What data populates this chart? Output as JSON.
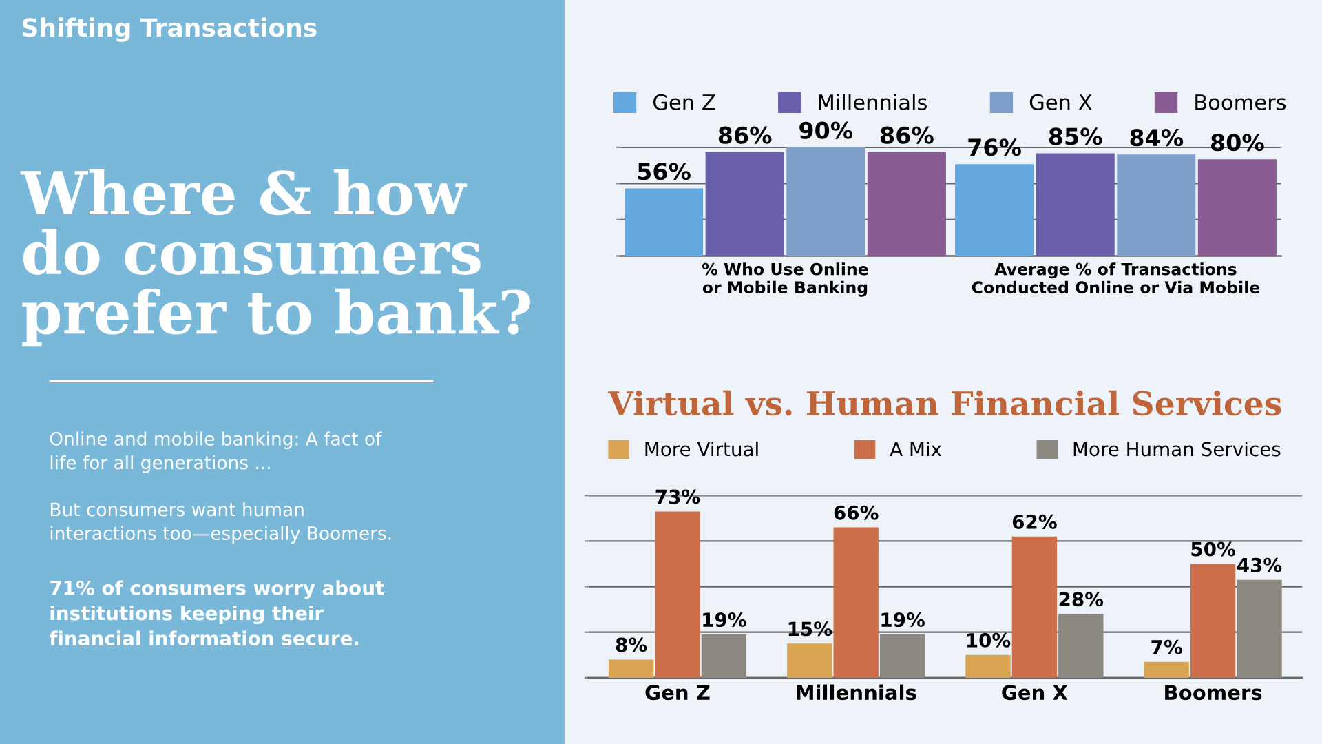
{
  "chart_data": [
    {
      "type": "other",
      "title": "Shifting Transactions",
      "subtitle": "Where & how\ndo consumers\nprefer to bank?",
      "annotations": [
        "Online and mobile banking: A fact of\nlife for all generations ...",
        "But consumers want human\ninteractions too—especially Boomers.",
        "71% of consumers worry about\ninstitutions keeping their\nfinancial information secure."
      ]
    },
    {
      "type": "bar",
      "categories": [
        "% Who Use Online\nor Mobile Banking",
        "Average % of Transactions\nConducted Online or Via Mobile"
      ],
      "series": [
        {
          "name": "Gen Z",
          "color": "#64a8e0",
          "values": [
            56,
            76
          ],
          "value_labels": [
            "56%",
            "76%"
          ]
        },
        {
          "name": "Millennials",
          "color": "#6a5fad",
          "values": [
            86,
            85
          ],
          "value_labels": [
            "86%",
            "85%"
          ]
        },
        {
          "name": "Gen X",
          "color": "#7f9fcb",
          "values": [
            90,
            84
          ],
          "value_labels": [
            "90%",
            "84%"
          ]
        },
        {
          "name": "Boomers",
          "color": "#8a5c95",
          "values": [
            86,
            80
          ],
          "value_labels": [
            "86%",
            "80%"
          ]
        }
      ],
      "ylim": [
        0,
        90
      ],
      "yticks": [
        {
          "value": 0,
          "label": null
        },
        {
          "value": 30,
          "label": null
        },
        {
          "value": 60,
          "label": null
        },
        {
          "value": 90,
          "label": null
        }
      ],
      "grid": "y",
      "legend": "top",
      "tick_labels": "x"
    },
    {
      "type": "bar",
      "title": "Virtual vs. Human Financial Services",
      "categories": [
        "Gen Z",
        "Millennials",
        "Gen X",
        "Boomers"
      ],
      "series": [
        {
          "name": "More Virtual",
          "color": "#d9a552",
          "values": [
            8,
            15,
            10,
            7
          ],
          "value_labels": [
            "8%",
            "15%",
            "10%",
            "7%"
          ]
        },
        {
          "name": "A Mix",
          "color": "#cd6e4a",
          "values": [
            73,
            66,
            62,
            50
          ],
          "value_labels": [
            "73%",
            "66%",
            "62%",
            "50%"
          ]
        },
        {
          "name": "More Human Services",
          "color": "#8c8880",
          "values": [
            19,
            19,
            28,
            43
          ],
          "value_labels": [
            "19%",
            "19%",
            "28%",
            "43%"
          ]
        }
      ],
      "ylim": [
        0,
        80
      ],
      "yticks": [
        {
          "value": 0,
          "label": null
        },
        {
          "value": 20,
          "label": null
        },
        {
          "value": 40,
          "label": null
        },
        {
          "value": 60,
          "label": null
        },
        {
          "value": 80,
          "label": null
        }
      ],
      "grid": "y",
      "legend": "top",
      "tick_labels": "x"
    }
  ]
}
